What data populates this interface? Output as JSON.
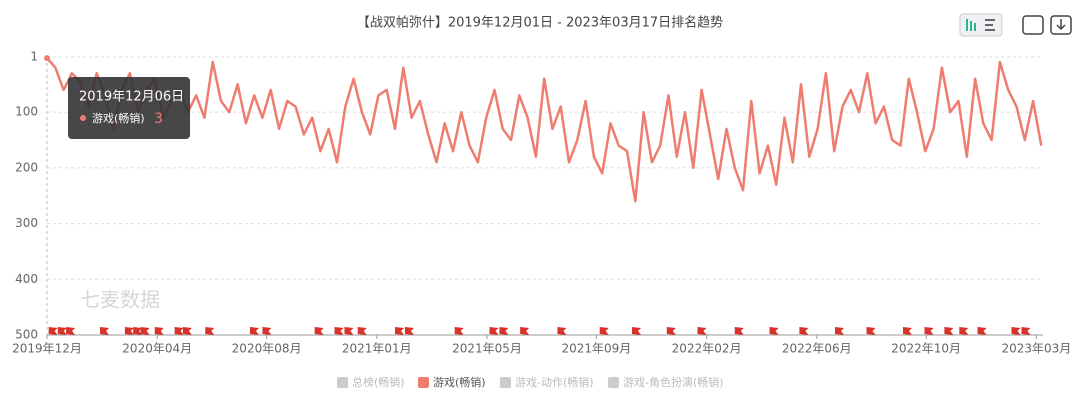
{
  "chart_data": {
    "type": "line",
    "title": "【战双帕弥什】2019年12月01日 - 2023年03月17日排名趋势",
    "watermark": "七麦数据",
    "x": [
      0,
      10,
      20,
      30,
      40,
      50,
      60,
      70,
      80,
      90,
      100,
      110,
      120,
      130,
      140,
      150,
      160,
      170,
      180,
      190,
      200,
      210,
      220,
      230,
      240,
      250,
      260,
      270,
      280,
      290,
      300,
      310,
      320,
      330,
      340,
      350,
      360,
      370,
      380,
      390,
      400,
      410,
      420,
      430,
      440,
      450,
      460,
      470,
      480,
      490,
      500,
      510,
      520,
      530,
      540,
      550,
      560,
      570,
      580,
      590,
      600,
      610,
      620,
      630,
      640,
      650,
      660,
      670,
      680,
      690,
      700,
      710,
      720,
      730,
      740,
      750,
      760,
      770,
      780,
      790,
      800,
      810,
      820,
      830,
      840,
      850,
      860,
      870,
      880,
      890,
      900,
      910,
      920,
      930,
      940,
      950,
      960,
      970,
      980,
      990,
      1000,
      1010,
      1020,
      1030,
      1040,
      1050,
      1060,
      1070,
      1080,
      1090,
      1100,
      1110,
      1120,
      1130,
      1140,
      1150,
      1160,
      1170,
      1180,
      1190,
      1200
    ],
    "series": [
      {
        "name": "游戏(畅销)",
        "color": "#ee7d6f",
        "values": [
          3,
          20,
          60,
          30,
          45,
          90,
          30,
          70,
          130,
          60,
          30,
          100,
          60,
          40,
          110,
          80,
          60,
          100,
          70,
          110,
          10,
          80,
          100,
          50,
          120,
          70,
          110,
          60,
          130,
          80,
          90,
          140,
          110,
          170,
          130,
          190,
          90,
          40,
          100,
          140,
          70,
          60,
          130,
          20,
          110,
          80,
          140,
          190,
          120,
          170,
          100,
          160,
          190,
          110,
          60,
          130,
          150,
          70,
          110,
          180,
          40,
          130,
          90,
          190,
          150,
          80,
          180,
          210,
          120,
          160,
          170,
          260,
          100,
          190,
          160,
          70,
          180,
          100,
          200,
          60,
          140,
          220,
          130,
          200,
          240,
          80,
          210,
          160,
          230,
          110,
          190,
          50,
          180,
          130,
          30,
          170,
          90,
          60,
          100,
          30,
          120,
          90,
          150,
          160,
          40,
          100,
          170,
          130,
          20,
          100,
          80,
          180,
          40,
          120,
          150,
          10,
          60,
          90,
          150,
          80,
          160
        ]
      }
    ],
    "legend_inactive": [
      {
        "name": "总榜(畅销)",
        "color": "#cccccc"
      },
      {
        "name": "游戏-动作(畅销)",
        "color": "#cccccc"
      },
      {
        "name": "游戏-角色扮演(畅销)",
        "color": "#cccccc"
      }
    ],
    "flags": [
      2,
      13,
      23,
      64,
      94,
      104,
      113,
      130,
      154,
      164,
      191,
      245,
      260,
      323,
      347,
      359,
      375,
      420,
      432,
      492,
      534,
      546,
      571,
      616,
      667,
      706,
      748,
      785,
      830,
      872,
      908,
      951,
      989,
      1033,
      1059,
      1083,
      1101,
      1123,
      1164,
      1176
    ],
    "flag_color": "#d9322a",
    "xlim": [
      0,
      1202
    ],
    "xticks": [
      {
        "value": 0,
        "label": "2019年12月"
      },
      {
        "value": 133,
        "label": "2020年04月"
      },
      {
        "value": 265,
        "label": "2020年08月"
      },
      {
        "value": 398,
        "label": "2021年01月"
      },
      {
        "value": 531,
        "label": "2021年05月"
      },
      {
        "value": 663,
        "label": "2021年09月"
      },
      {
        "value": 796,
        "label": "2022年02月"
      },
      {
        "value": 929,
        "label": "2022年06月"
      },
      {
        "value": 1061,
        "label": "2022年10月"
      },
      {
        "value": 1194,
        "label": "2023年03月"
      }
    ],
    "ylim": [
      500,
      1
    ],
    "yticks": [
      1,
      100,
      200,
      300,
      400,
      500
    ],
    "grid": true,
    "tooltip": {
      "title": "2019年12月06日",
      "series": "游戏(畅销)",
      "value": 3
    }
  }
}
